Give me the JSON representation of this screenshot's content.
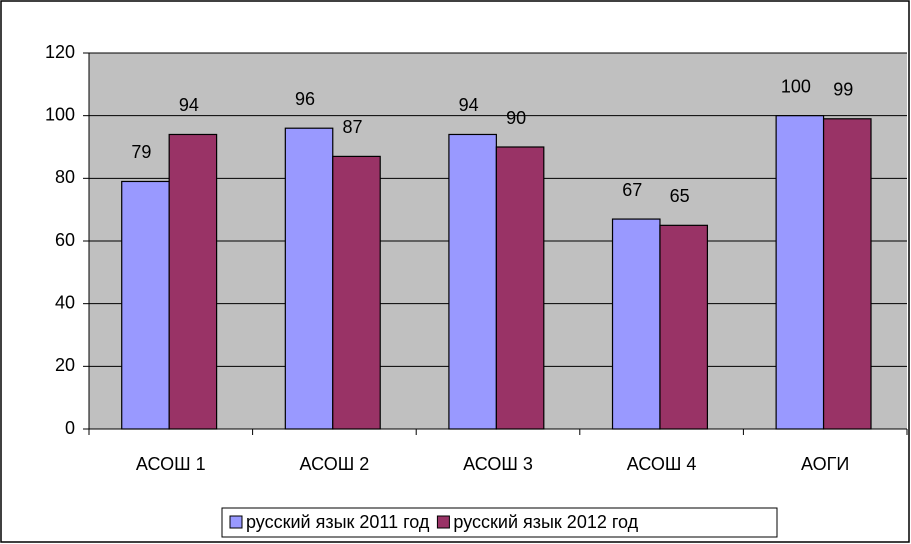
{
  "chart_data": {
    "type": "bar",
    "categories": [
      "АСОШ 1",
      "АСОШ 2",
      "АСОШ 3",
      "АСОШ 4",
      "АОГИ"
    ],
    "series": [
      {
        "name": "русский язык 2011 год",
        "color": "#9999ff",
        "values": [
          79,
          96,
          94,
          67,
          100
        ]
      },
      {
        "name": "русский язык 2012 год",
        "color": "#993366",
        "values": [
          94,
          87,
          90,
          65,
          99
        ]
      }
    ],
    "ylim": [
      0,
      120
    ],
    "yticks": [
      0,
      20,
      40,
      60,
      80,
      100,
      120
    ],
    "grid": true,
    "plot_background": "#c0c0c0",
    "legend": "bottom"
  }
}
